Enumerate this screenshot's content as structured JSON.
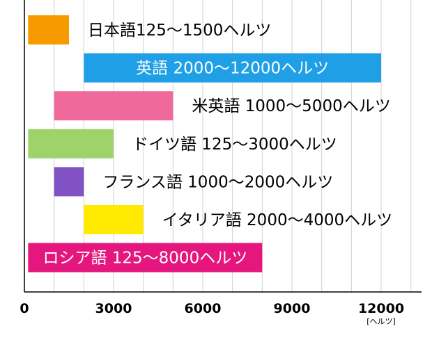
{
  "chart_data": {
    "type": "bar",
    "orientation": "horizontal",
    "kind": "range",
    "title": "",
    "xlabel": "",
    "ylabel": "",
    "unit": "[ヘルツ]",
    "xlim": [
      0,
      14000
    ],
    "xticks": [
      0,
      3000,
      6000,
      9000,
      12000
    ],
    "grid": true,
    "legend": "none",
    "bars": [
      {
        "label": "日本語125〜1500ヘルツ",
        "start": 125,
        "end": 1500,
        "color": "#f79a00",
        "label_inside": false,
        "label_color": "#000000"
      },
      {
        "label": "英語 2000〜12000ヘルツ",
        "start": 2000,
        "end": 12000,
        "color": "#1fa0e6",
        "label_inside": true,
        "label_color": "#ffffff"
      },
      {
        "label": "米英語 1000〜5000ヘルツ",
        "start": 1000,
        "end": 5000,
        "color": "#f0699b",
        "label_inside": false,
        "label_color": "#000000"
      },
      {
        "label": "ドイツ語 125〜3000ヘルツ",
        "start": 125,
        "end": 3000,
        "color": "#9ed36a",
        "label_inside": false,
        "label_color": "#000000"
      },
      {
        "label": "フランス語 1000〜2000ヘルツ",
        "start": 1000,
        "end": 2000,
        "color": "#8052c4",
        "label_inside": false,
        "label_color": "#000000"
      },
      {
        "label": "イタリア語 2000〜4000ヘルツ",
        "start": 2000,
        "end": 4000,
        "color": "#ffea00",
        "label_inside": false,
        "label_color": "#000000"
      },
      {
        "label": "ロシア語 125〜8000ヘルツ",
        "start": 125,
        "end": 8000,
        "color": "#e5177e",
        "label_inside": true,
        "label_color": "#ffffff"
      }
    ]
  }
}
